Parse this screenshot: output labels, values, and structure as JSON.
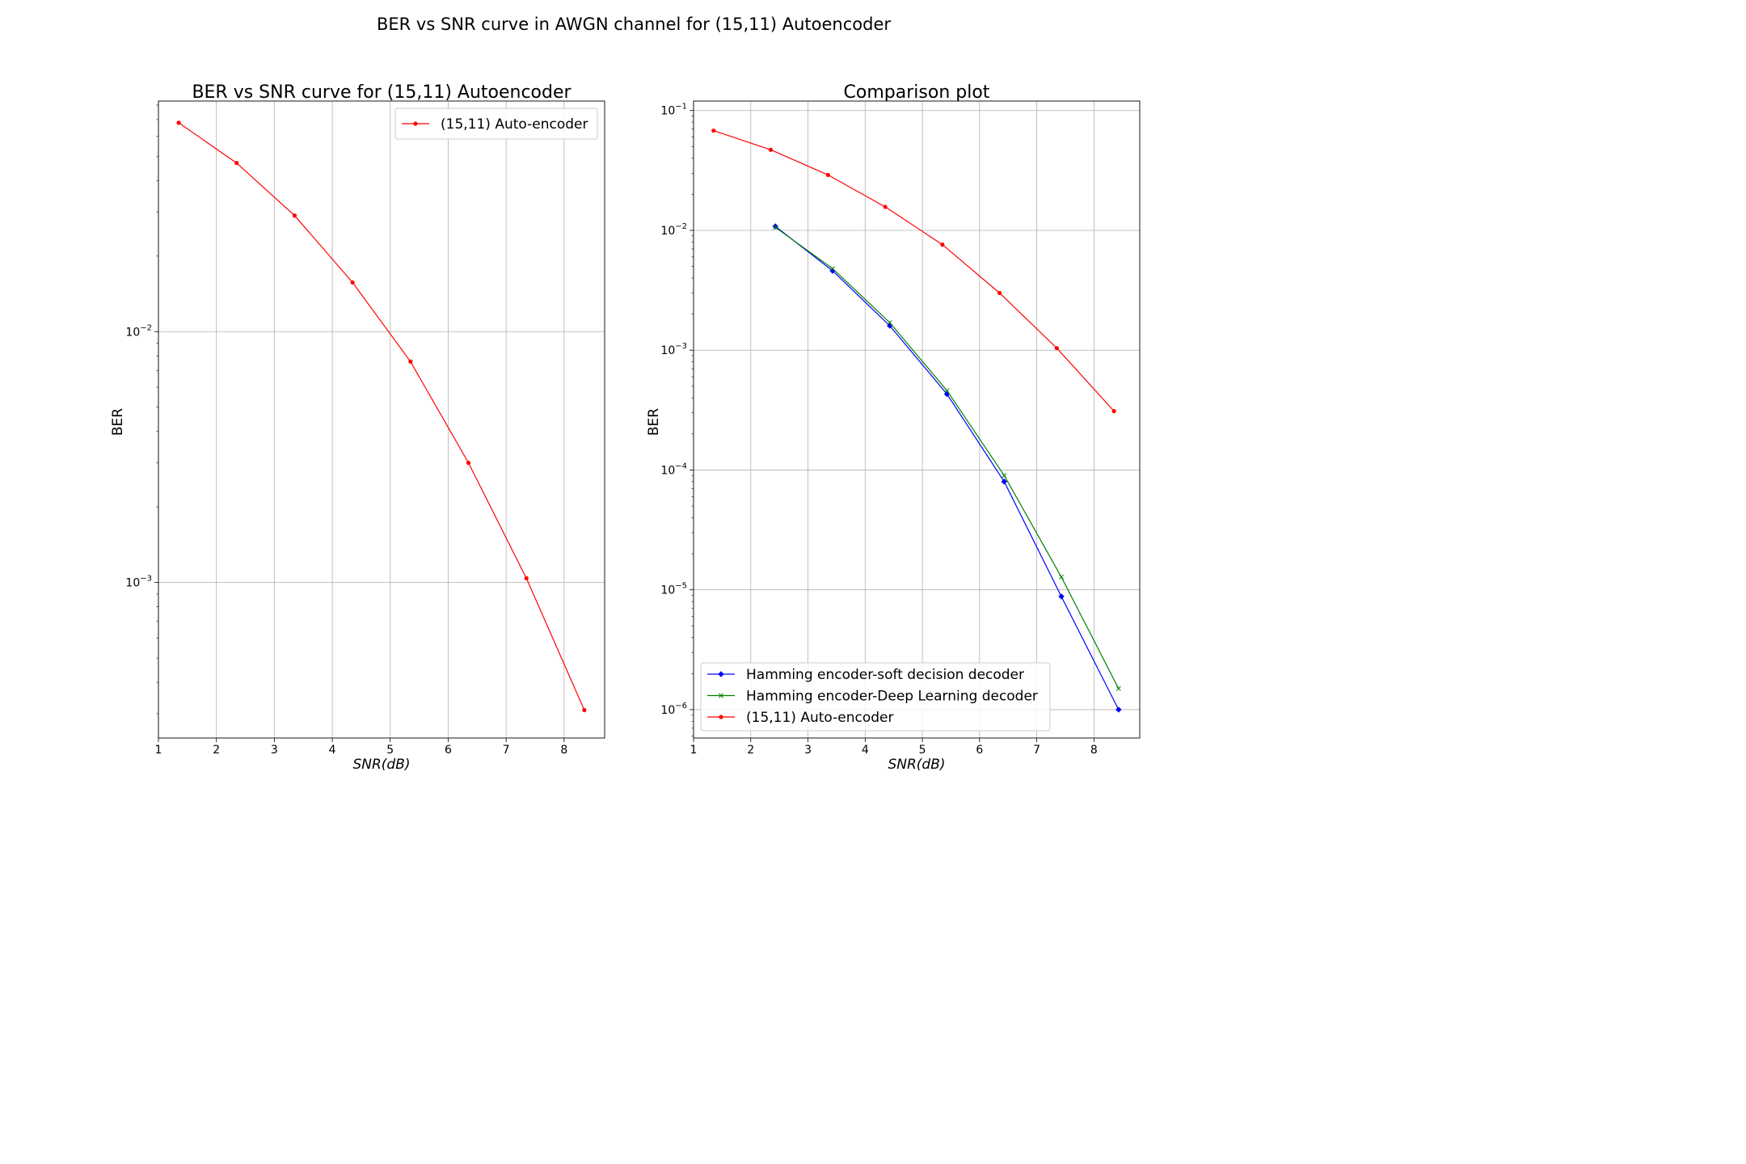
{
  "figure": {
    "suptitle": "BER vs SNR curve in AWGN channel for (15,11) Autoencoder"
  },
  "chart_data": [
    {
      "type": "line",
      "title": "BER vs SNR curve for (15,11) Autoencoder",
      "xlabel": "SNR(dB)",
      "ylabel": "BER",
      "y_scale": "log",
      "grid": true,
      "legend_position": "top-right",
      "xlim": [
        1,
        8.7
      ],
      "ylim": [
        0.00024,
        0.083
      ],
      "xticks": [
        "1",
        "2",
        "3",
        "4",
        "5",
        "6",
        "7",
        "8"
      ],
      "yticks": [
        "10^-2",
        "10^-3"
      ],
      "series": [
        {
          "name": "(15,11) Auto-encoder",
          "color": "#ff0000",
          "marker": "dot",
          "x": [
            1.35,
            2.35,
            3.35,
            4.35,
            5.35,
            6.35,
            7.35,
            8.35
          ],
          "y": [
            0.068,
            0.047,
            0.029,
            0.0157,
            0.0076,
            0.003,
            0.00104,
            0.00031
          ]
        }
      ]
    },
    {
      "type": "line",
      "title": "Comparison plot",
      "xlabel": "SNR(dB)",
      "ylabel": "BER",
      "y_scale": "log",
      "grid": true,
      "legend_position": "bottom-left",
      "xlim": [
        1,
        8.8
      ],
      "ylim": [
        5.8e-07,
        0.12
      ],
      "xticks": [
        "1",
        "2",
        "3",
        "4",
        "5",
        "6",
        "7",
        "8"
      ],
      "yticks": [
        "10^-1",
        "10^-2",
        "10^-3",
        "10^-4",
        "10^-5",
        "10^-6"
      ],
      "series": [
        {
          "name": "Hamming encoder-soft decision decoder",
          "color": "#0000ff",
          "marker": "diamond",
          "x": [
            2.43,
            3.43,
            4.43,
            5.43,
            6.43,
            7.43,
            8.43
          ],
          "y": [
            0.0108,
            0.0046,
            0.0016,
            0.00043,
            8e-05,
            8.8e-06,
            1e-06
          ]
        },
        {
          "name": "Hamming encoder-Deep Learning decoder",
          "color": "#008000",
          "marker": "x",
          "x": [
            2.43,
            3.43,
            4.43,
            5.43,
            6.43,
            7.43,
            8.43
          ],
          "y": [
            0.0106,
            0.0048,
            0.0017,
            0.00046,
            9e-05,
            1.28e-05,
            1.5e-06
          ]
        },
        {
          "name": "(15,11) Auto-encoder",
          "color": "#ff0000",
          "marker": "dot",
          "x": [
            1.35,
            2.35,
            3.35,
            4.35,
            5.35,
            6.35,
            7.35,
            8.35
          ],
          "y": [
            0.068,
            0.047,
            0.029,
            0.0157,
            0.0076,
            0.003,
            0.00104,
            0.00031
          ]
        }
      ]
    }
  ]
}
